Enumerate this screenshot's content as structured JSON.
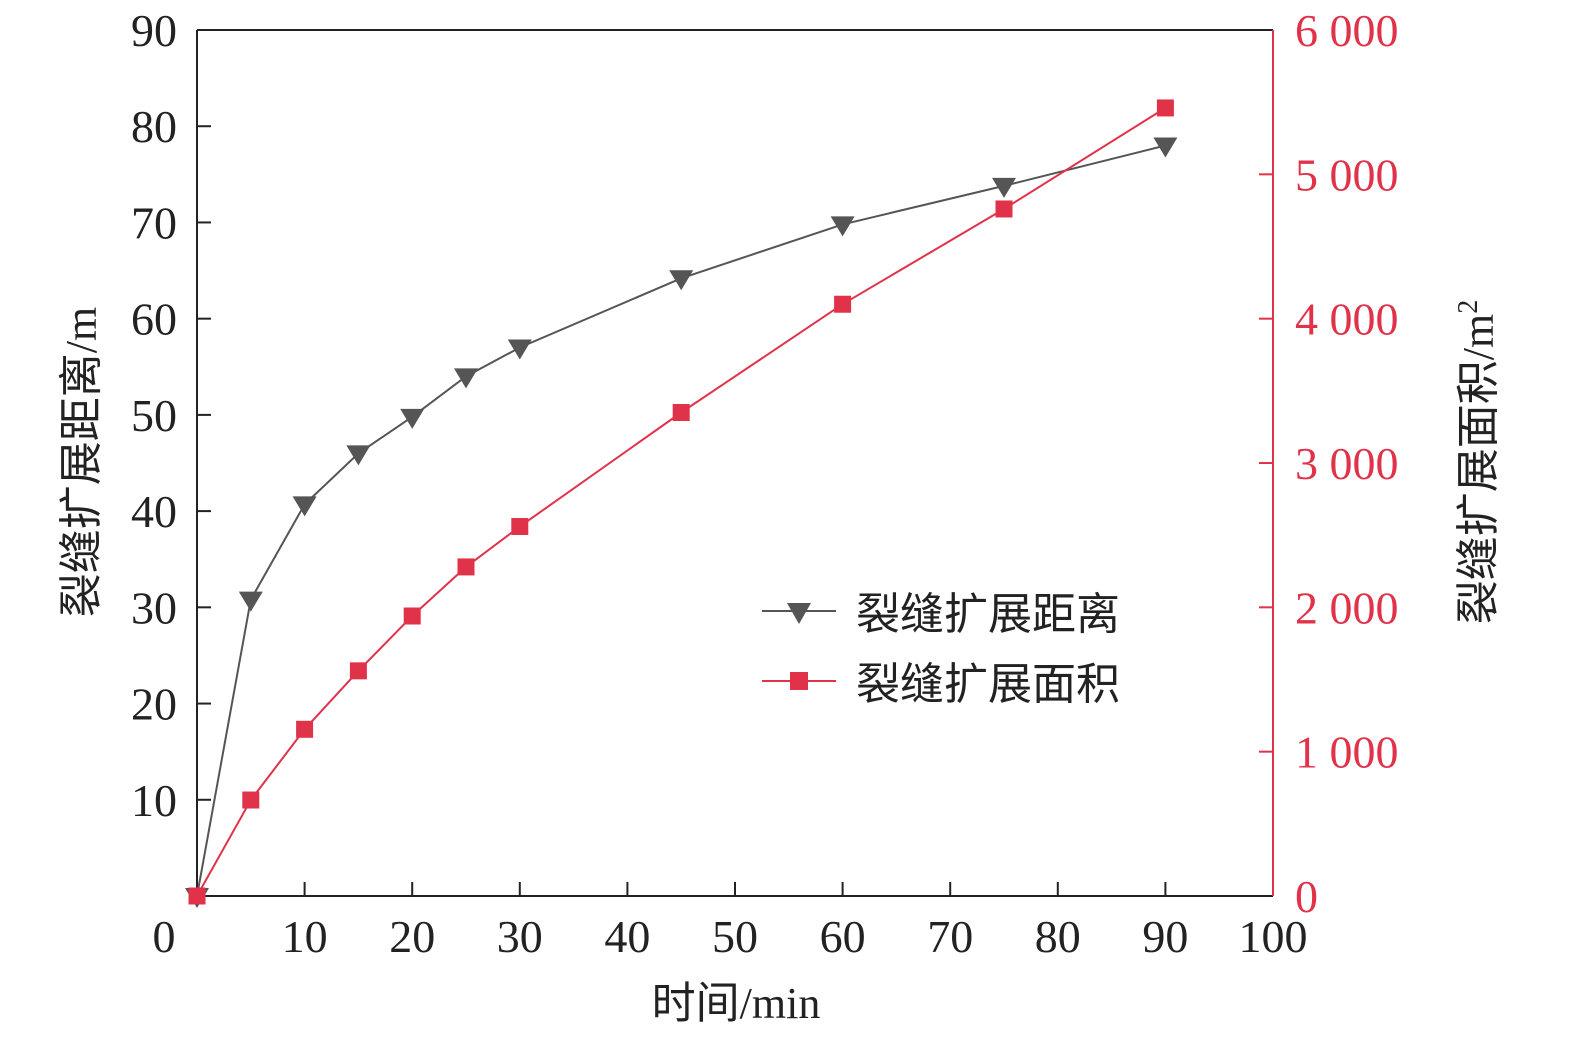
{
  "chart_data": {
    "type": "line",
    "xlabel": "时间/min",
    "ylabel_left": "裂缝扩展距离/m",
    "ylabel_right_text": "裂缝扩展面积/m",
    "ylabel_right_sup": "2",
    "xlim": [
      0,
      100
    ],
    "ylim_left": [
      0,
      90
    ],
    "ylim_right": [
      0,
      6000
    ],
    "x_ticks": [
      "0",
      "10",
      "20",
      "30",
      "40",
      "50",
      "60",
      "70",
      "80",
      "90",
      "100"
    ],
    "y_left_ticks": [
      "10",
      "20",
      "30",
      "40",
      "50",
      "60",
      "70",
      "80",
      "90"
    ],
    "y_right_ticks": [
      "0",
      "1 000",
      "2 000",
      "3 000",
      "4 000",
      "5 000",
      "6 000"
    ],
    "legend_position": "center-right",
    "grid": false,
    "series": [
      {
        "name": "裂缝扩展距离",
        "axis": "left",
        "marker": "triangle-down",
        "color": "#555555",
        "x": [
          0,
          5,
          10,
          15,
          20,
          25,
          30,
          45,
          60,
          75,
          90
        ],
        "y": [
          0,
          30.8,
          40.7,
          46,
          49.8,
          54,
          57,
          64.2,
          69.8,
          73.8,
          78
        ]
      },
      {
        "name": "裂缝扩展面积",
        "axis": "right",
        "marker": "square",
        "color": "#e0334a",
        "x": [
          0,
          5,
          10,
          15,
          20,
          25,
          30,
          45,
          60,
          75,
          90
        ],
        "y": [
          0,
          665,
          1155,
          1560,
          1940,
          2280,
          2560,
          3350,
          4100,
          4760,
          5460
        ]
      }
    ]
  }
}
